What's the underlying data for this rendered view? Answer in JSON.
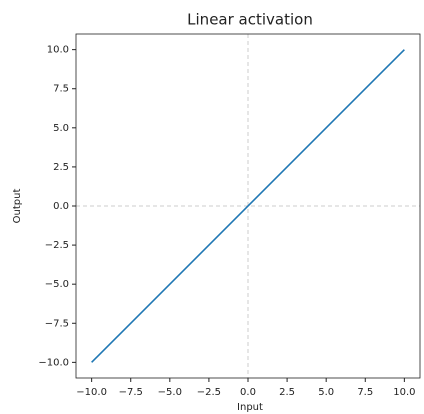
{
  "chart_data": {
    "type": "line",
    "title": "Linear activation",
    "x_label": "Input",
    "y_label": "Output",
    "x": [
      -10,
      10
    ],
    "series": [
      {
        "color": "#1f77b4",
        "values": [
          -10,
          10
        ]
      }
    ],
    "xlim": [
      -11,
      11
    ],
    "ylim": [
      -11,
      11
    ],
    "xticks": [
      {
        "value": -10,
        "label": "−10.0"
      },
      {
        "value": -7.5,
        "label": "−7.5"
      },
      {
        "value": -5,
        "label": "−5.0"
      },
      {
        "value": -2.5,
        "label": "−2.5"
      },
      {
        "value": 0,
        "label": "0.0"
      },
      2.5,
      {
        "value": 5,
        "label": "5.0"
      },
      7.5,
      {
        "value": 10,
        "label": "10.0"
      }
    ],
    "yticks": [
      {
        "value": -10,
        "label": "−10.0"
      },
      {
        "value": -7.5,
        "label": "−7.5"
      },
      {
        "value": -5,
        "label": "−5.0"
      },
      {
        "value": -2.5,
        "label": "−2.5"
      },
      {
        "value": 0,
        "label": "0.0"
      },
      2.5,
      {
        "value": 5,
        "label": "5.0"
      },
      7.5,
      {
        "value": 10,
        "label": "10.0"
      }
    ],
    "hlines": [
      0
    ],
    "vlines": [
      0
    ],
    "reference_line_color": "#cccccc"
  }
}
